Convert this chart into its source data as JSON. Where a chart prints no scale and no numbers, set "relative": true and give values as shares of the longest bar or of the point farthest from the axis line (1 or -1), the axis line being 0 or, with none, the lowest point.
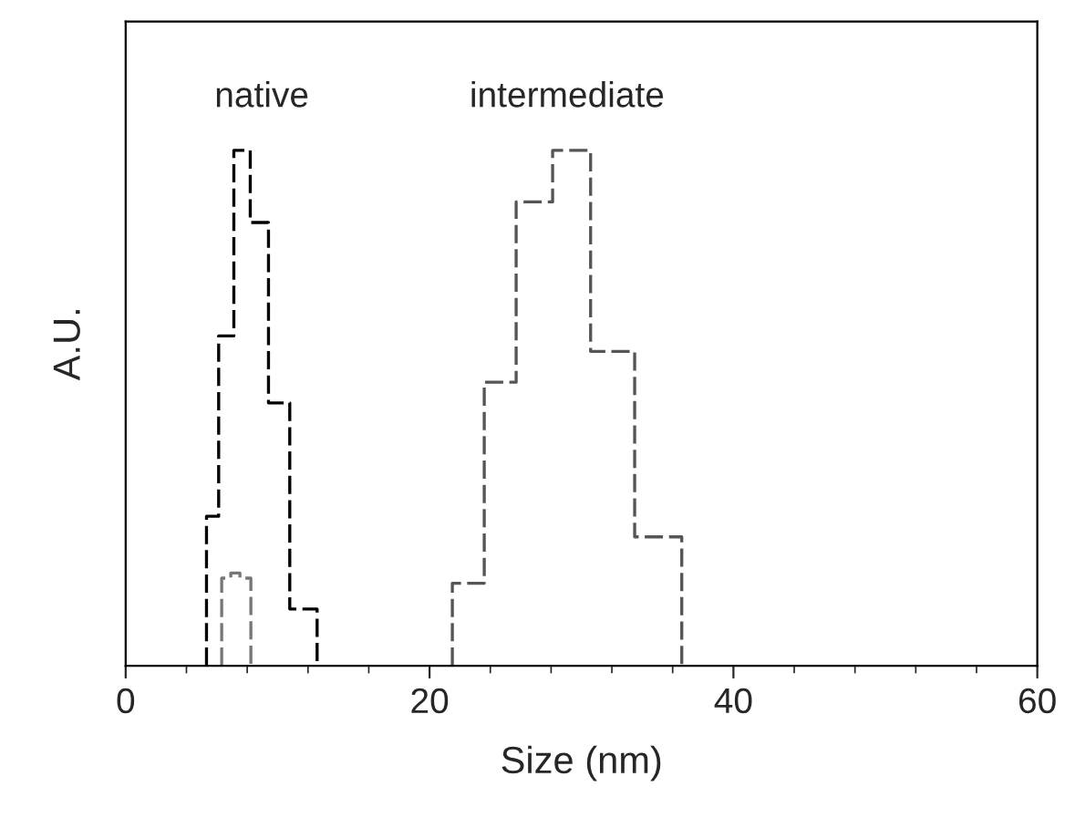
{
  "chart_data": {
    "type": "step",
    "relative": true,
    "xlabel": "Size (nm)",
    "ylabel": "A.U.",
    "xlim": [
      0,
      60
    ],
    "xticks": [
      0,
      20,
      40,
      60
    ],
    "tick_labels": "x",
    "grid": false,
    "legend": false,
    "line_style": "dashed",
    "series": [
      {
        "name": "native",
        "color": "#000000",
        "x": [
          5.32,
          5.32,
          6.12,
          7.12,
          8.2,
          9.4,
          10.8,
          12.6
        ],
        "values": [
          0,
          0.29,
          0.64,
          1.0,
          0.86,
          0.51,
          0.11,
          0
        ]
      },
      {
        "name": "intermediate",
        "color": "#555555",
        "x": [
          21.5,
          21.5,
          23.6,
          25.7,
          28.1,
          30.6,
          33.5,
          36.6
        ],
        "values": [
          0,
          0.16,
          0.55,
          0.9,
          1.0,
          0.61,
          0.25,
          0
        ]
      },
      {
        "color": "#777777",
        "x": [
          6.32,
          6.32,
          6.92,
          7.52,
          8.24
        ],
        "values": [
          0,
          0.17,
          0.18,
          0.17,
          0
        ]
      }
    ]
  }
}
